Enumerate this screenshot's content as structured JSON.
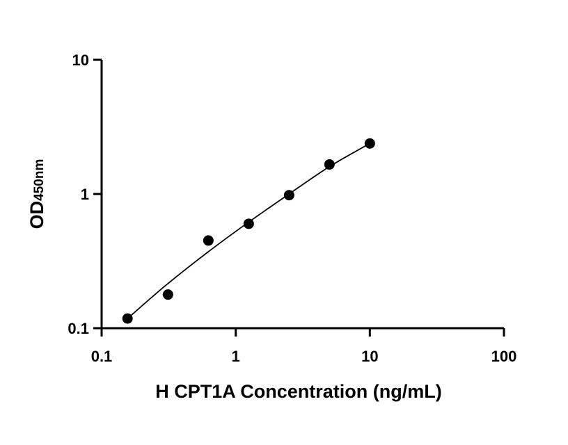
{
  "chart_data": {
    "type": "scatter",
    "title": "",
    "xlabel": "H CPT1A Concentration (ng/mL)",
    "ylabel": "OD",
    "ylabel_subscript": "450nm",
    "x_scale": "log",
    "y_scale": "log",
    "xlim": [
      0.1,
      100
    ],
    "ylim": [
      0.1,
      10
    ],
    "x_ticks": [
      0.1,
      1,
      10,
      100
    ],
    "x_tick_labels": [
      "0.1",
      "1",
      "10",
      "100"
    ],
    "y_ticks": [
      0.1,
      1,
      10
    ],
    "y_tick_labels": [
      "0.1",
      "1",
      "10"
    ],
    "grid": false,
    "legend": "none",
    "series": [
      {
        "x": [
          0.156,
          0.3125,
          0.625,
          1.25,
          2.5,
          5,
          10
        ],
        "y": [
          0.118,
          0.178,
          0.45,
          0.6,
          0.98,
          1.66,
          2.38
        ],
        "marker": "circle",
        "color": "#000000"
      }
    ],
    "fit_curve": {
      "x": [
        0.156,
        0.3,
        0.6,
        1.2,
        2.5,
        5,
        10
      ],
      "y": [
        0.118,
        0.208,
        0.36,
        0.6,
        1.0,
        1.6,
        2.38
      ],
      "color": "#000000"
    }
  }
}
